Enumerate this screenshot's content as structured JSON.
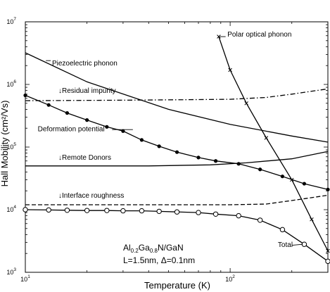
{
  "chart_data": {
    "type": "line",
    "title": "",
    "xlabel": "Temperature (K)",
    "ylabel": "Hall Mobility (cm²/Vs)",
    "xscale": "log",
    "yscale": "log",
    "xlim": [
      10,
      300
    ],
    "ylim": [
      1000,
      10000000
    ],
    "grid": false,
    "x_ticks": [
      {
        "base": "10",
        "exp": "1",
        "value": 10
      },
      {
        "base": "10",
        "exp": "2",
        "value": 100
      }
    ],
    "y_ticks": [
      {
        "base": "10",
        "exp": "3",
        "value": 1000
      },
      {
        "base": "10",
        "exp": "4",
        "value": 10000
      },
      {
        "base": "10",
        "exp": "5",
        "value": 100000
      },
      {
        "base": "10",
        "exp": "6",
        "value": 1000000
      },
      {
        "base": "10",
        "exp": "7",
        "value": 10000000
      }
    ],
    "series": [
      {
        "name": "Piezoelectric phonon",
        "label": "Piezoelectric phonon",
        "arrow": "",
        "style": "solid",
        "marker": "none",
        "x": [
          10,
          20,
          50,
          100,
          200,
          300
        ],
        "y": [
          3200000,
          1100000,
          400000,
          230000,
          150000,
          120000
        ]
      },
      {
        "name": "Polar optical phonon",
        "label": "Polar optical phonon",
        "arrow": "",
        "style": "solid",
        "marker": "x",
        "x": [
          88,
          100,
          120,
          150,
          200,
          250,
          300
        ],
        "y": [
          5800000,
          1700000,
          500000,
          140000,
          30000,
          7000,
          2200
        ]
      },
      {
        "name": "Residual impurity",
        "label": "Residual impurity",
        "arrow": "↓",
        "style": "dashdot",
        "marker": "none",
        "x": [
          10,
          30,
          60,
          100,
          150,
          200,
          300
        ],
        "y": [
          550000,
          560000,
          570000,
          580000,
          620000,
          700000,
          850000
        ]
      },
      {
        "name": "Deformation potential",
        "label": "Deformation potential",
        "arrow": "",
        "style": "solid",
        "marker": "dot",
        "x": [
          10,
          13,
          16,
          20,
          25,
          30,
          37,
          45,
          55,
          70,
          85,
          110,
          140,
          180,
          230,
          300
        ],
        "y": [
          670000,
          470000,
          350000,
          270000,
          210000,
          180000,
          130000,
          103000,
          83000,
          68000,
          60000,
          54000,
          44000,
          34000,
          26000,
          21000
        ]
      },
      {
        "name": "Remote Donors",
        "label": "Remote Donors",
        "arrow": "↓",
        "style": "solid",
        "marker": "none",
        "x": [
          10,
          40,
          80,
          120,
          200,
          300
        ],
        "y": [
          50000,
          50000,
          52000,
          56000,
          65000,
          85000
        ]
      },
      {
        "name": "Interface roughness",
        "label": "Interface roughness",
        "arrow": "↓",
        "style": "dashed",
        "marker": "none",
        "x": [
          10,
          50,
          100,
          150,
          200,
          300
        ],
        "y": [
          12000,
          12000,
          12000,
          12300,
          14000,
          17000
        ]
      },
      {
        "name": "Total",
        "label": "Total",
        "arrow": "",
        "style": "solid",
        "marker": "circle",
        "x": [
          10,
          13,
          16,
          20,
          25,
          30,
          37,
          45,
          55,
          70,
          85,
          110,
          140,
          180,
          230,
          300
        ],
        "y": [
          10000,
          9900,
          9800,
          9700,
          9700,
          9600,
          9600,
          9400,
          9200,
          9000,
          8500,
          8000,
          6800,
          4800,
          2800,
          1500
        ]
      }
    ],
    "annotations": [
      {
        "parts": [
          {
            "t": "Al"
          },
          {
            "t": "0.2",
            "sub": true
          },
          {
            "t": "Ga"
          },
          {
            "t": "0.8",
            "sub": true
          },
          {
            "t": "N/GaN"
          }
        ]
      },
      {
        "parts": [
          {
            "t": "L=1.5nm, Δ=0.1nm"
          }
        ]
      }
    ]
  }
}
